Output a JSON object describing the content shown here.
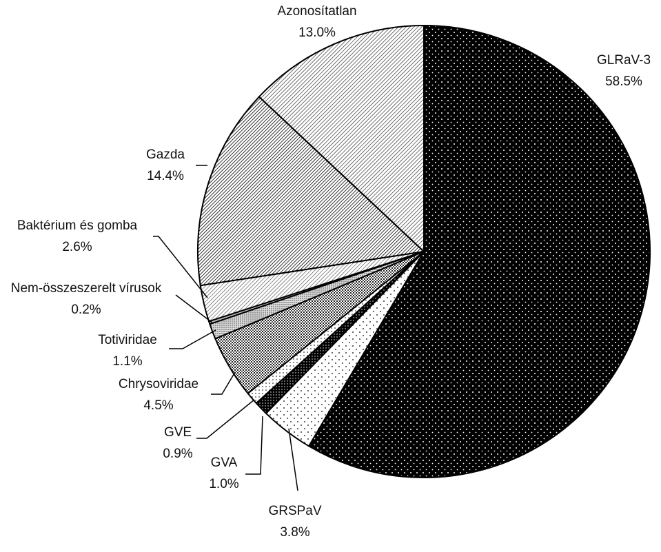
{
  "chart_data": {
    "type": "pie",
    "categories": [
      "GLRaV-3",
      "GRSPaV",
      "GVA",
      "GVE",
      "Chrysoviridae",
      "Totiviridae",
      "Nem-összeszerelt vírusok",
      "Baktérium és gomba",
      "Gazda",
      "Azonosítatlan"
    ],
    "values": [
      58.5,
      3.8,
      1.0,
      0.9,
      4.5,
      1.1,
      0.2,
      2.6,
      14.4,
      13.0
    ],
    "value_labels": [
      "58.5%",
      "3.8%",
      "1.0%",
      "0.9%",
      "4.5%",
      "1.1%",
      "0.2%",
      "2.6%",
      "14.4%",
      "13.0%"
    ]
  }
}
